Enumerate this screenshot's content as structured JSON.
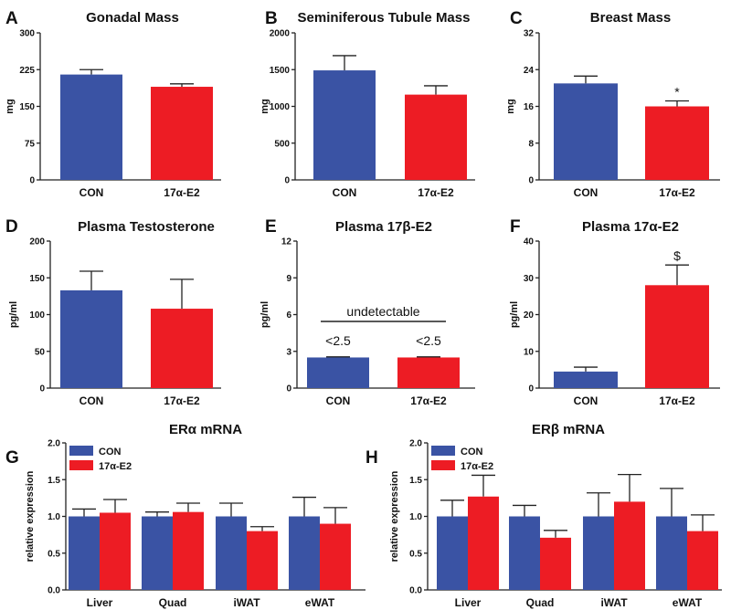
{
  "chart_data": [
    {
      "panel": "A",
      "title": "Gonadal Mass",
      "type": "bar",
      "ylabel": "mg",
      "ylim": [
        0,
        300
      ],
      "yticks": [
        "0",
        "75",
        "150",
        "225",
        "300"
      ],
      "categories": [
        "CON",
        "17α-E2"
      ],
      "values": [
        215,
        190
      ],
      "errors": [
        10,
        6
      ],
      "colors": [
        "#3a53a4",
        "#ed1c24"
      ]
    },
    {
      "panel": "B",
      "title": "Seminiferous Tubule Mass",
      "type": "bar",
      "ylabel": "mg",
      "ylim": [
        0,
        2000
      ],
      "yticks": [
        "0",
        "500",
        "1000",
        "1500",
        "2000"
      ],
      "categories": [
        "CON",
        "17α-E2"
      ],
      "values": [
        1490,
        1160
      ],
      "errors": [
        200,
        120
      ],
      "colors": [
        "#3a53a4",
        "#ed1c24"
      ]
    },
    {
      "panel": "C",
      "title": "Breast Mass",
      "type": "bar",
      "ylabel": "mg",
      "ylim": [
        0,
        32
      ],
      "yticks": [
        "0",
        "8",
        "16",
        "24",
        "32"
      ],
      "categories": [
        "CON",
        "17α-E2"
      ],
      "values": [
        21,
        16
      ],
      "errors": [
        1.6,
        1.2
      ],
      "colors": [
        "#3a53a4",
        "#ed1c24"
      ],
      "markers": [
        "",
        "*"
      ]
    },
    {
      "panel": "D",
      "title": "Plasma Testosterone",
      "type": "bar",
      "ylabel": "pg/ml",
      "ylim": [
        0,
        200
      ],
      "yticks": [
        "0",
        "50",
        "100",
        "150",
        "200"
      ],
      "categories": [
        "CON",
        "17α-E2"
      ],
      "values": [
        133,
        108
      ],
      "errors": [
        26,
        40
      ],
      "colors": [
        "#3a53a4",
        "#ed1c24"
      ]
    },
    {
      "panel": "E",
      "title": "Plasma 17β-E2",
      "type": "bar",
      "ylabel": "pg/ml",
      "ylim": [
        0,
        12
      ],
      "yticks": [
        "0",
        "3",
        "6",
        "9",
        "12"
      ],
      "categories": [
        "CON",
        "17α-E2"
      ],
      "values": [
        2.5,
        2.5
      ],
      "errors": [
        0.05,
        0.05
      ],
      "colors": [
        "#3a53a4",
        "#ed1c24"
      ],
      "bar_notes": [
        "<2.5",
        "<2.5"
      ],
      "bracket_label": "undetectable"
    },
    {
      "panel": "F",
      "title": "Plasma 17α-E2",
      "type": "bar",
      "ylabel": "pg/ml",
      "ylim": [
        0,
        40
      ],
      "yticks": [
        "0",
        "10",
        "20",
        "30",
        "40"
      ],
      "categories": [
        "CON",
        "17α-E2"
      ],
      "values": [
        4.5,
        28
      ],
      "errors": [
        1.2,
        5.5
      ],
      "colors": [
        "#3a53a4",
        "#ed1c24"
      ],
      "markers": [
        "",
        "$"
      ]
    },
    {
      "panel": "G",
      "title": "ERα mRNA",
      "type": "bar",
      "ylabel": "relative expression",
      "ylim": [
        0,
        2
      ],
      "yticks": [
        "0.0",
        "0.5",
        "1.0",
        "1.5",
        "2.0"
      ],
      "categories": [
        "Liver",
        "Quad",
        "iWAT",
        "eWAT"
      ],
      "series": [
        {
          "name": "CON",
          "color": "#3a53a4",
          "values": [
            1.0,
            1.0,
            1.0,
            1.0
          ],
          "errors": [
            0.1,
            0.06,
            0.18,
            0.26
          ]
        },
        {
          "name": "17α-E2",
          "color": "#ed1c24",
          "values": [
            1.05,
            1.06,
            0.8,
            0.9
          ],
          "errors": [
            0.18,
            0.12,
            0.06,
            0.22
          ]
        }
      ],
      "legend": "top-left"
    },
    {
      "panel": "H",
      "title": "ERβ mRNA",
      "type": "bar",
      "ylabel": "relative expression",
      "ylim": [
        0,
        2
      ],
      "yticks": [
        "0.0",
        "0.5",
        "1.0",
        "1.5",
        "2.0"
      ],
      "categories": [
        "Liver",
        "Quad",
        "iWAT",
        "eWAT"
      ],
      "series": [
        {
          "name": "CON",
          "color": "#3a53a4",
          "values": [
            1.0,
            1.0,
            1.0,
            1.0
          ],
          "errors": [
            0.22,
            0.15,
            0.32,
            0.38
          ]
        },
        {
          "name": "17α-E2",
          "color": "#ed1c24",
          "values": [
            1.27,
            0.71,
            1.2,
            0.8
          ],
          "errors": [
            0.29,
            0.1,
            0.37,
            0.22
          ]
        }
      ],
      "legend": "top-left"
    }
  ]
}
